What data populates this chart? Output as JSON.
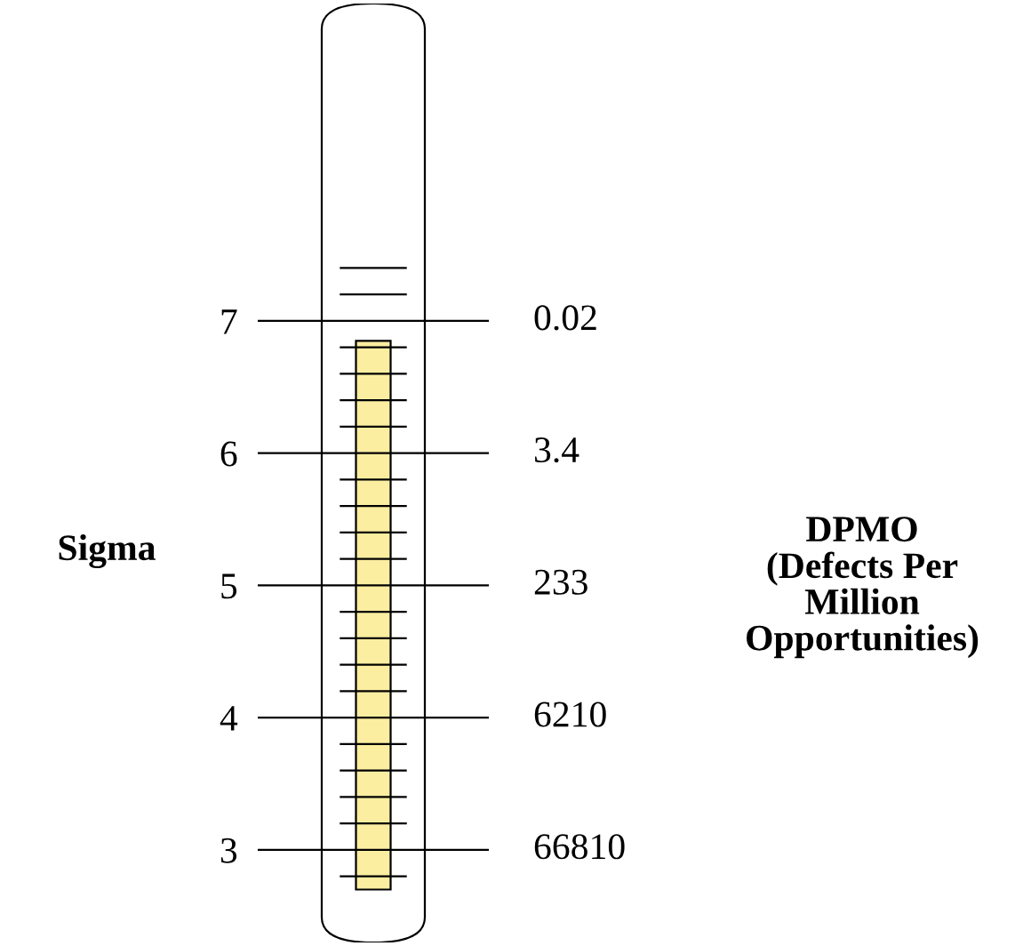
{
  "chart_data": {
    "type": "bar",
    "categories": [
      null
    ],
    "values": [
      4.15
    ],
    "base": [
      2.7
    ],
    "color": "#fbeea0",
    "ylabel": "Sigma",
    "grid": "y",
    "ylim": [
      2.3,
      9.4
    ],
    "yticks": [
      {
        "value": 2.8,
        "label": null
      },
      3,
      {
        "value": 3.2,
        "label": null
      },
      {
        "value": 3.4,
        "label": null
      },
      {
        "value": 3.6,
        "label": null
      },
      {
        "value": 3.8,
        "label": null
      },
      4,
      {
        "value": 4.2,
        "label": null
      },
      {
        "value": 4.4,
        "label": null
      },
      {
        "value": 4.6,
        "label": null
      },
      {
        "value": 4.8,
        "label": null
      },
      5,
      {
        "value": 5.2,
        "label": null
      },
      {
        "value": 5.4,
        "label": null
      },
      {
        "value": 5.6,
        "label": null
      },
      {
        "value": 5.8,
        "label": null
      },
      6,
      {
        "value": 6.2,
        "label": null
      },
      {
        "value": 6.4,
        "label": null
      },
      {
        "value": 6.6,
        "label": null
      },
      {
        "value": 6.8,
        "label": null
      },
      7,
      {
        "value": 7.2,
        "label": null
      },
      {
        "value": 7.4,
        "label": null
      }
    ],
    "annotations": [
      "66810",
      "6210",
      "233",
      "3.4",
      "0.02",
      "DPMO\n(Defects Per\nMillion\nOpportunities)"
    ]
  }
}
